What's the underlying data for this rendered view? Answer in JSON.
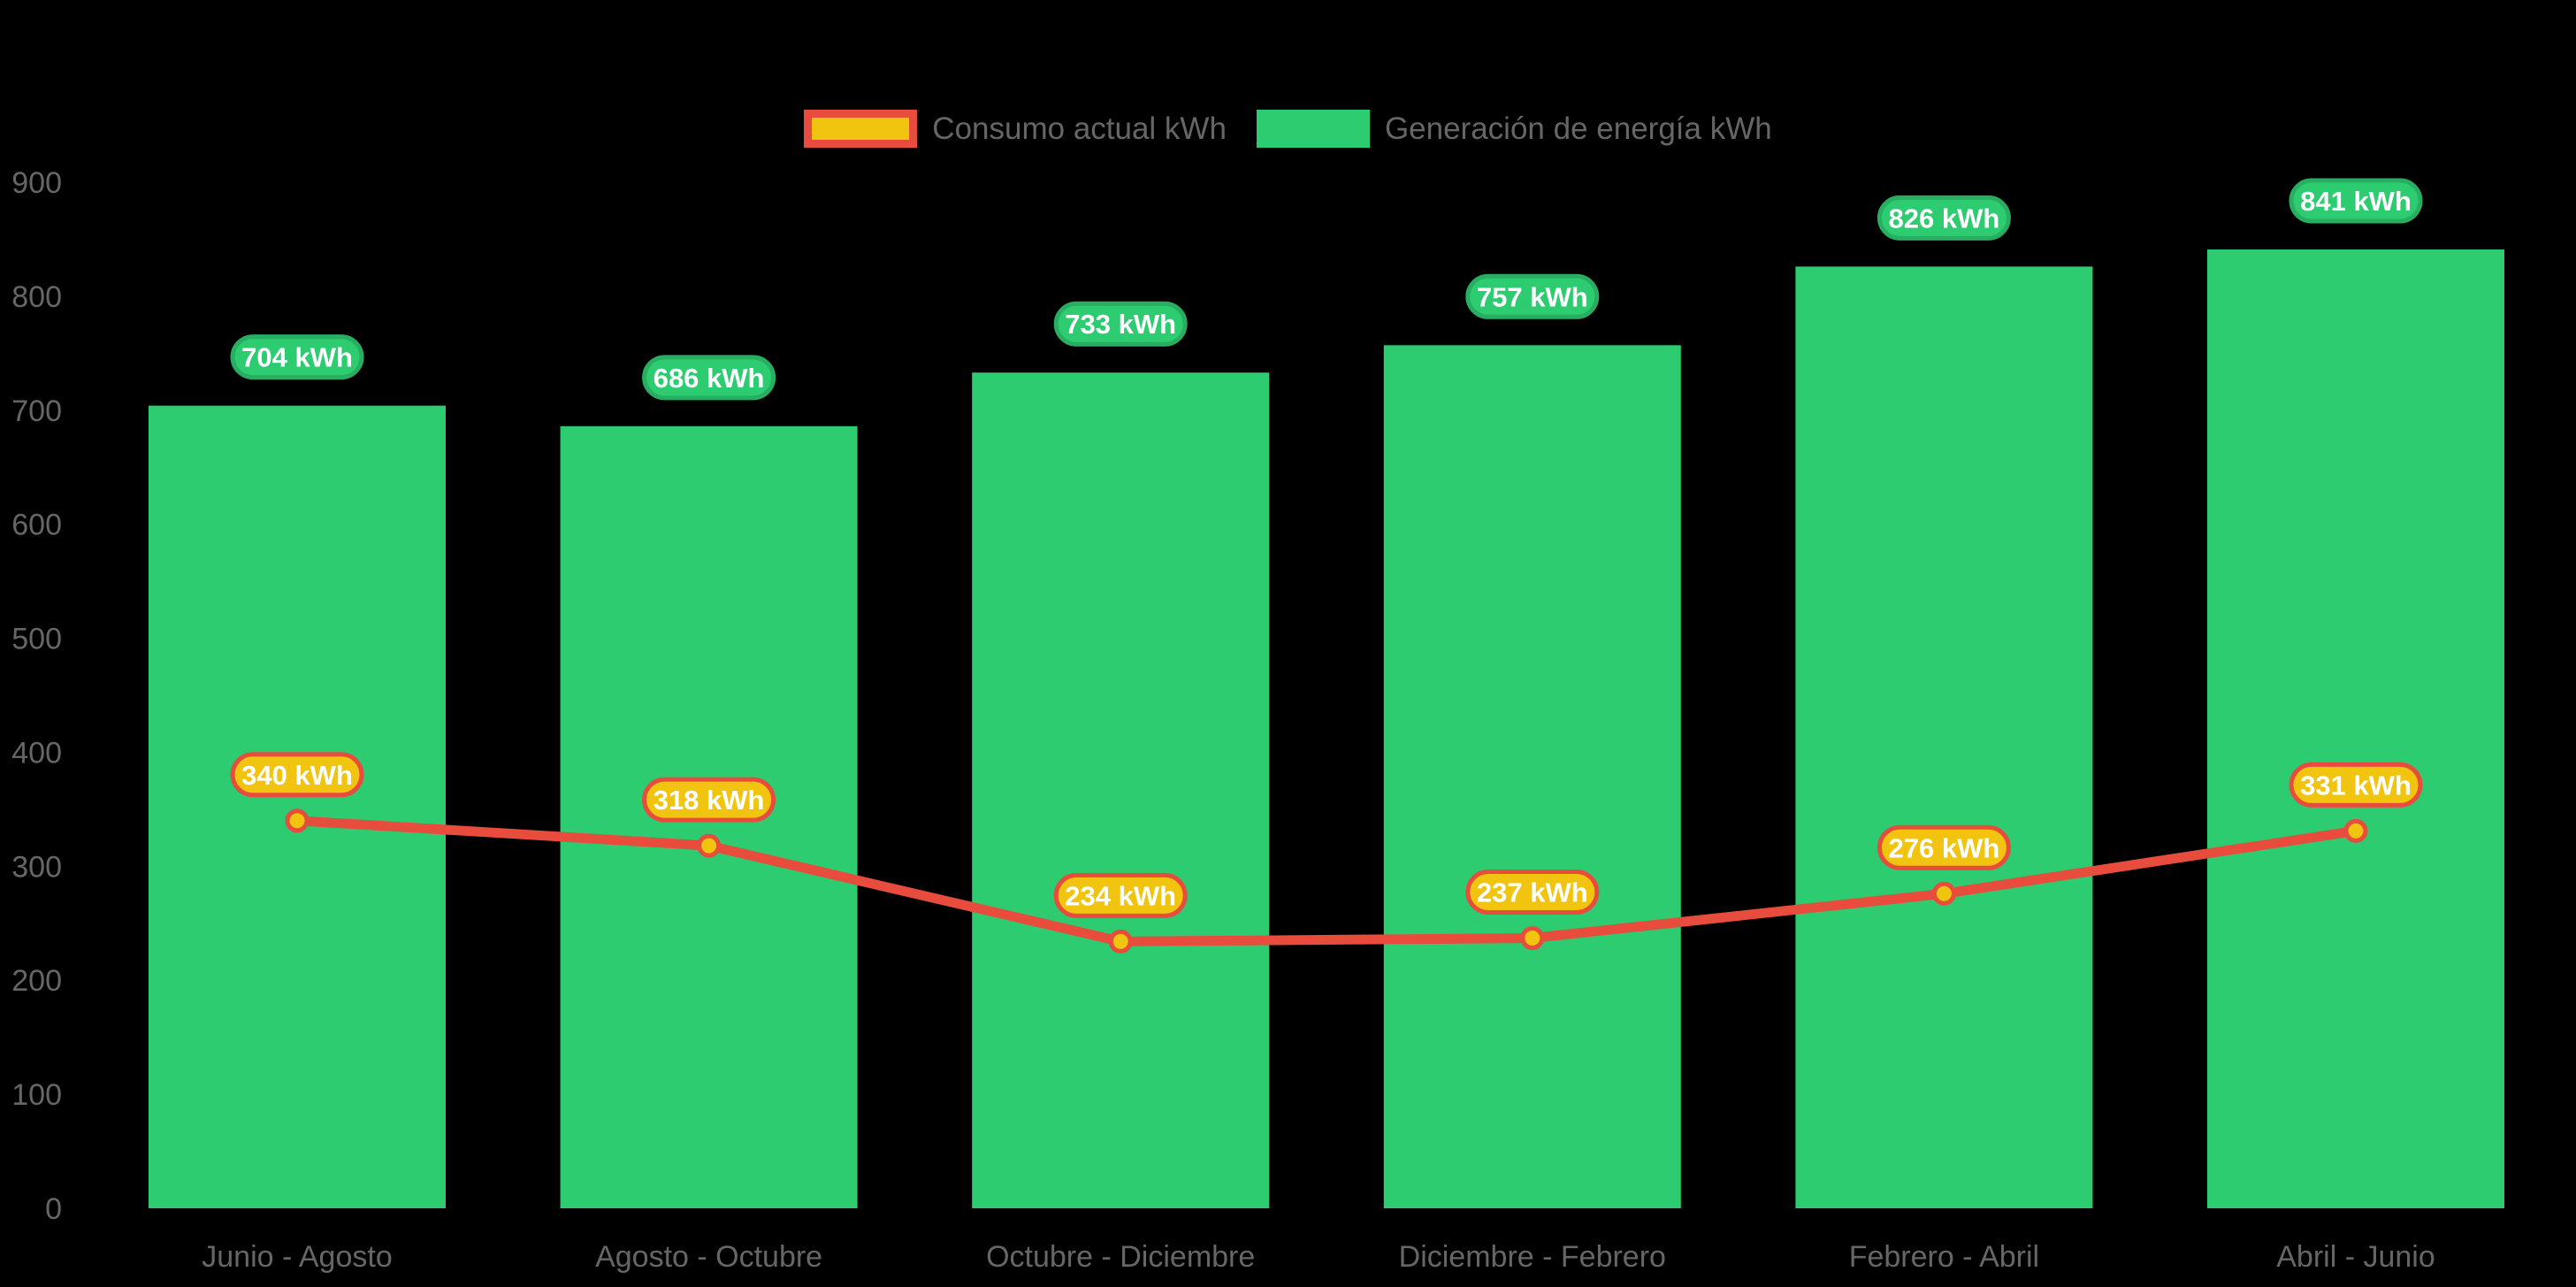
{
  "legend": {
    "items": [
      {
        "label": "Consumo actual kWh",
        "swatch": "yellow-with-red-border"
      },
      {
        "label": "Generación de energía kWh",
        "swatch": "green"
      }
    ]
  },
  "colors": {
    "background": "#000000",
    "bar_green": "#2ecc71",
    "badge_green_border": "#27ae60",
    "line_red": "#e74c3c",
    "point_yellow": "#f1c40f",
    "badge_yellow": "#f1c40f",
    "badge_red_border": "#e74c3c",
    "axis_text": "#666666",
    "badge_text": "#ffffff"
  },
  "chart_data": {
    "type": "bar",
    "subtype": "bar-with-line-overlay",
    "categories": [
      "Junio - Agosto",
      "Agosto - Octubre",
      "Octubre - Diciembre",
      "Diciembre - Febrero",
      "Febrero - Abril",
      "Abril - Junio"
    ],
    "series": [
      {
        "name": "Consumo actual kWh",
        "type": "line",
        "color": "#e74c3c",
        "point_color": "#f1c40f",
        "values": [
          340,
          318,
          234,
          237,
          276,
          331
        ],
        "value_labels": [
          "340 kWh",
          "318 kWh",
          "234 kWh",
          "237 kWh",
          "276 kWh",
          "331 kWh"
        ]
      },
      {
        "name": "Generación de energía kWh",
        "type": "bar",
        "color": "#2ecc71",
        "values": [
          704,
          686,
          733,
          757,
          826,
          841
        ],
        "value_labels": [
          "704 kWh",
          "686 kWh",
          "733 kWh",
          "757 kWh",
          "826 kWh",
          "841 kWh"
        ]
      }
    ],
    "title": "",
    "xlabel": "",
    "ylabel": "",
    "ylim": [
      0,
      900
    ],
    "yticks": [
      0,
      100,
      200,
      300,
      400,
      500,
      600,
      700,
      800,
      900
    ],
    "grid": false,
    "legend_position": "top-center",
    "unit": "kWh"
  }
}
